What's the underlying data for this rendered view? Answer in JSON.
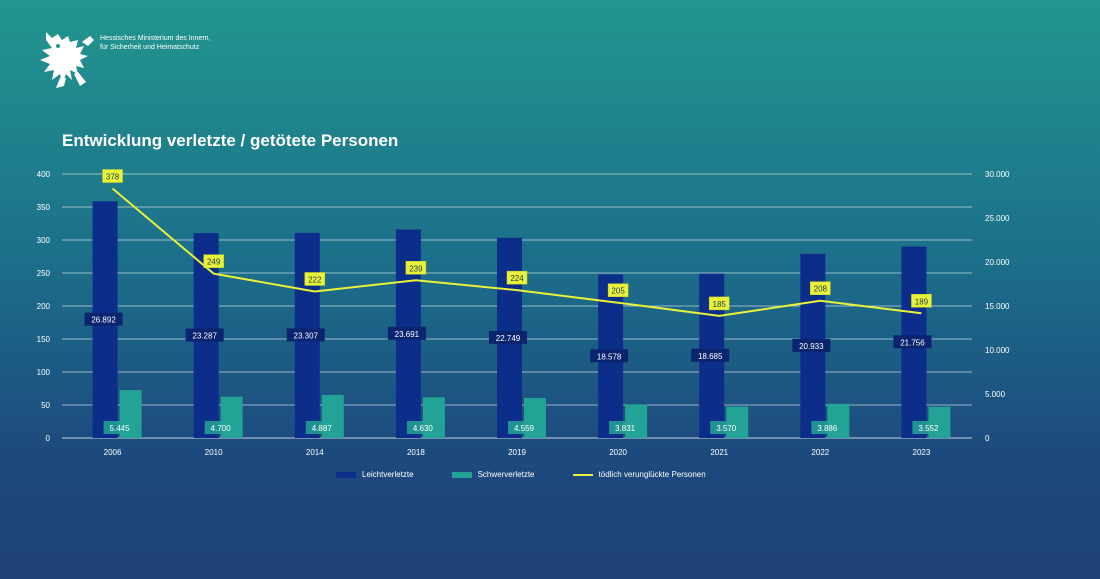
{
  "header": {
    "ministry_line1": "Hessisches Ministerium des Innern,",
    "ministry_line2": "für Sicherheit und Heimatschutz",
    "logo_icon": "hessian-lion-icon"
  },
  "chart_data": {
    "type": "bar",
    "title": "Entwicklung verletzte / getötete Personen",
    "categories": [
      "2006",
      "2010",
      "2014",
      "2018",
      "2019",
      "2020",
      "2021",
      "2022",
      "2023"
    ],
    "y_left": {
      "ylim": [
        0,
        400
      ],
      "ticks": [
        "0",
        "50",
        "100",
        "150",
        "200",
        "250",
        "300",
        "350",
        "400"
      ]
    },
    "y_right": {
      "ylim": [
        0,
        30000
      ],
      "ticks": [
        "0",
        "5.000",
        "10.000",
        "15.000",
        "20.000",
        "25.000",
        "30.000"
      ]
    },
    "series": [
      {
        "name": "Leichtverletzte",
        "type": "bar",
        "axis": "right",
        "color": "#0c2e8a",
        "values": [
          26892,
          23287,
          23307,
          23691,
          22749,
          18578,
          18685,
          20933,
          21756
        ],
        "labels": [
          "26.892",
          "23.287",
          "23.307",
          "23.691",
          "22.749",
          "18.578",
          "18.685",
          "20.933",
          "21.756"
        ]
      },
      {
        "name": "Schwerverletzte",
        "type": "bar",
        "axis": "right",
        "color": "#23a395",
        "values": [
          5445,
          4700,
          4887,
          4630,
          4559,
          3831,
          3570,
          3886,
          3552
        ],
        "labels": [
          "5.445",
          "4.700",
          "4.887",
          "4.630",
          "4.559",
          "3.831",
          "3.570",
          "3.886",
          "3.552"
        ]
      },
      {
        "name": "tödlich verunglückte Personen",
        "type": "line",
        "axis": "left",
        "color": "#e9f23a",
        "values": [
          378,
          249,
          222,
          239,
          224,
          205,
          185,
          208,
          189
        ],
        "labels": [
          "378",
          "249",
          "222",
          "239",
          "224",
          "205",
          "185",
          "208",
          "189"
        ]
      }
    ],
    "grid": true,
    "legend": "bottom"
  }
}
